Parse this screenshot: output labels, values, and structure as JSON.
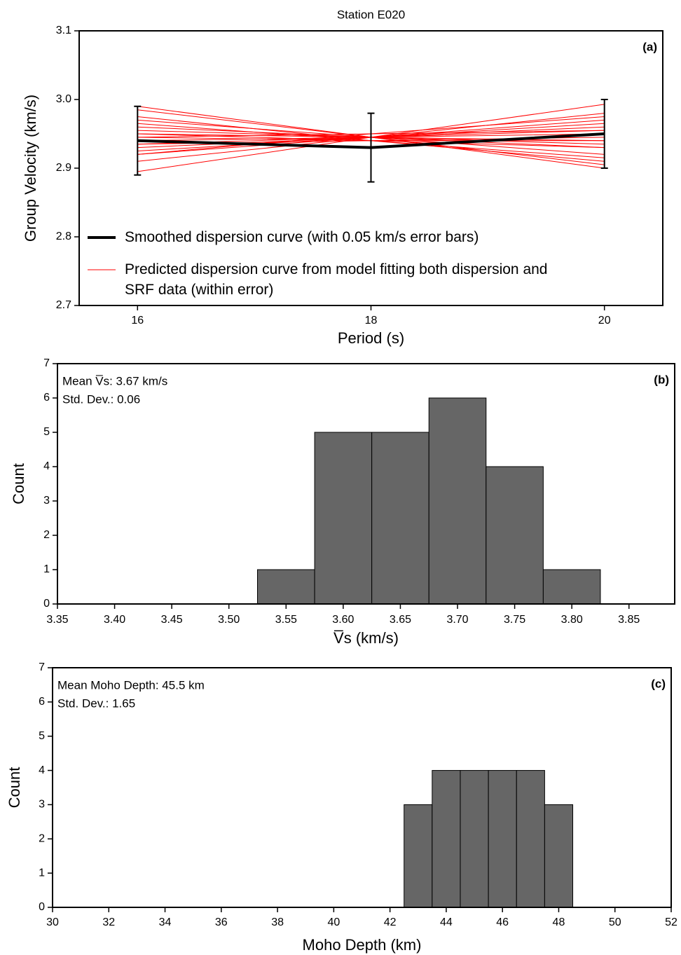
{
  "chart_data": [
    {
      "type": "line",
      "title": "Station E020",
      "panel_label": "(a)",
      "x_label": "Period (s)",
      "y_label": "Group Velocity (km/s)",
      "x": [
        16,
        18,
        20
      ],
      "xlim": [
        15.5,
        20.5
      ],
      "xticks": [
        16,
        18,
        20
      ],
      "ylim": [
        2.7,
        3.1
      ],
      "yticks": [
        2.7,
        2.8,
        2.9,
        {
          "value": 3,
          "label": "3.0"
        },
        3.1
      ],
      "series": [
        {
          "name": "Smoothed dispersion curve (with 0.05 km/s error bars)",
          "color": "#000000",
          "values": [
            2.94,
            2.93,
            2.95
          ],
          "error": 0.05
        },
        {
          "name": "Predicted dispersion curve from model fitting both dispersion and SRF data (within error)",
          "color": "#ff0000",
          "values": [
            [
              2.99,
              2.945,
              2.9
            ],
            [
              2.985,
              2.945,
              2.905
            ],
            [
              2.975,
              2.94,
              2.91
            ],
            [
              2.97,
              2.945,
              2.92
            ],
            [
              2.965,
              2.94,
              2.915
            ],
            [
              2.96,
              2.945,
              2.93
            ],
            [
              2.955,
              2.945,
              2.935
            ],
            [
              2.95,
              2.94,
              2.93
            ],
            [
              2.945,
              2.94,
              2.94
            ],
            [
              2.94,
              2.945,
              2.95
            ],
            [
              2.935,
              2.945,
              2.955
            ],
            [
              2.93,
              2.945,
              2.96
            ],
            [
              2.925,
              2.945,
              2.965
            ],
            [
              2.92,
              2.945,
              2.97
            ],
            [
              2.92,
              2.95,
              2.975
            ],
            [
              2.91,
              2.945,
              2.98
            ],
            [
              2.895,
              2.945,
              2.993
            ],
            [
              2.945,
              2.95,
              2.955
            ],
            [
              2.95,
              2.945,
              2.94
            ],
            [
              2.935,
              2.94,
              2.945
            ]
          ]
        }
      ]
    },
    {
      "type": "histogram",
      "panel_label": "(b)",
      "x_label": "V̅s (km/s)",
      "y_label": "Count",
      "annotations": [
        "Mean V̅s: 3.67 km/s",
        "Std. Dev.: 0.06"
      ],
      "bins": [
        3.525,
        3.575,
        3.625,
        3.675,
        3.725,
        3.775,
        3.825
      ],
      "counts": [
        1,
        5,
        5,
        6,
        4,
        1
      ],
      "color": "#666666",
      "xlim": [
        3.35,
        3.89
      ],
      "xticks": [
        3.35,
        {
          "value": 3.4,
          "label": "3.40"
        },
        3.45,
        {
          "value": 3.5,
          "label": "3.50"
        },
        3.55,
        {
          "value": 3.6,
          "label": "3.60"
        },
        3.65,
        {
          "value": 3.7,
          "label": "3.70"
        },
        3.75,
        {
          "value": 3.8,
          "label": "3.80"
        },
        3.85
      ],
      "ylim": [
        0,
        7
      ],
      "yticks": [
        0,
        1,
        2,
        3,
        4,
        5,
        6,
        7
      ]
    },
    {
      "type": "histogram",
      "panel_label": "(c)",
      "x_label": "Moho Depth (km)",
      "y_label": "Count",
      "annotations": [
        "Mean Moho Depth: 45.5 km",
        "Std. Dev.: 1.65"
      ],
      "bins": [
        42.5,
        43.5,
        44.5,
        45.5,
        46.5,
        47.5,
        48.5
      ],
      "counts": [
        3,
        4,
        4,
        4,
        4,
        3
      ],
      "color": "#666666",
      "xlim": [
        30,
        52
      ],
      "xticks": [
        30,
        32,
        34,
        36,
        38,
        40,
        42,
        44,
        46,
        48,
        50,
        52
      ],
      "ylim": [
        0,
        7
      ],
      "yticks": [
        0,
        1,
        2,
        3,
        4,
        5,
        6,
        7
      ]
    }
  ]
}
